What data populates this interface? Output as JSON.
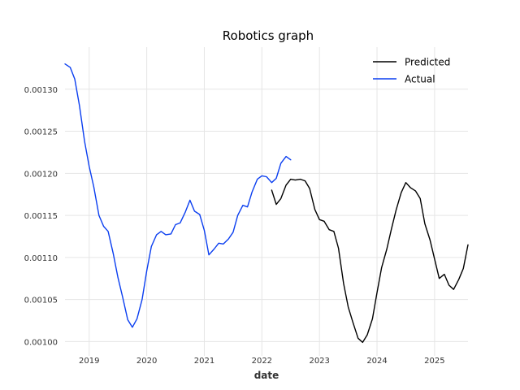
{
  "chart_data": {
    "type": "line",
    "title": "Robotics graph",
    "xlabel": "date",
    "ylabel": "",
    "xlim": [
      2018.58,
      2025.58
    ],
    "ylim": [
      0.000983,
      0.00135
    ],
    "x_ticks": [
      "2019",
      "2020",
      "2021",
      "2022",
      "2023",
      "2024",
      "2025"
    ],
    "y_ticks": [
      "0.00100",
      "0.00105",
      "0.00110",
      "0.00115",
      "0.00120",
      "0.00125",
      "0.00130"
    ],
    "grid": true,
    "legend_position": "top-right",
    "series": [
      {
        "name": "Predicted",
        "color": "#000000",
        "points": [
          [
            2022.17,
            0.00118
          ],
          [
            2022.25,
            0.001163
          ],
          [
            2022.33,
            0.00117
          ],
          [
            2022.42,
            0.001186
          ],
          [
            2022.5,
            0.001193
          ],
          [
            2022.58,
            0.001192
          ],
          [
            2022.67,
            0.001193
          ],
          [
            2022.75,
            0.001191
          ],
          [
            2022.83,
            0.001182
          ],
          [
            2022.92,
            0.001157
          ],
          [
            2023.0,
            0.001145
          ],
          [
            2023.08,
            0.001143
          ],
          [
            2023.17,
            0.001133
          ],
          [
            2023.25,
            0.001131
          ],
          [
            2023.33,
            0.001111
          ],
          [
            2023.42,
            0.001069
          ],
          [
            2023.5,
            0.001041
          ],
          [
            2023.58,
            0.001023
          ],
          [
            2023.67,
            0.001004
          ],
          [
            2023.75,
            0.000999
          ],
          [
            2023.83,
            0.001008
          ],
          [
            2023.92,
            0.001027
          ],
          [
            2024.0,
            0.001058
          ],
          [
            2024.08,
            0.001088
          ],
          [
            2024.17,
            0.00111
          ],
          [
            2024.25,
            0.001134
          ],
          [
            2024.33,
            0.001156
          ],
          [
            2024.42,
            0.001177
          ],
          [
            2024.5,
            0.001189
          ],
          [
            2024.58,
            0.001183
          ],
          [
            2024.67,
            0.001179
          ],
          [
            2024.75,
            0.00117
          ],
          [
            2024.83,
            0.00114
          ],
          [
            2024.92,
            0.001121
          ],
          [
            2025.0,
            0.001098
          ],
          [
            2025.08,
            0.001075
          ],
          [
            2025.17,
            0.00108
          ],
          [
            2025.25,
            0.001067
          ],
          [
            2025.33,
            0.001062
          ],
          [
            2025.42,
            0.001074
          ],
          [
            2025.5,
            0.001087
          ],
          [
            2025.58,
            0.001115
          ]
        ]
      },
      {
        "name": "Actual",
        "color": "#0a3ef0",
        "points": [
          [
            2018.58,
            0.00133
          ],
          [
            2018.67,
            0.001326
          ],
          [
            2018.75,
            0.001312
          ],
          [
            2018.83,
            0.001281
          ],
          [
            2018.92,
            0.001238
          ],
          [
            2019.0,
            0.001208
          ],
          [
            2019.08,
            0.001184
          ],
          [
            2019.17,
            0.00115
          ],
          [
            2019.25,
            0.001137
          ],
          [
            2019.33,
            0.001131
          ],
          [
            2019.42,
            0.001104
          ],
          [
            2019.5,
            0.001076
          ],
          [
            2019.58,
            0.001053
          ],
          [
            2019.67,
            0.001026
          ],
          [
            2019.75,
            0.001017
          ],
          [
            2019.83,
            0.001027
          ],
          [
            2019.92,
            0.00105
          ],
          [
            2020.0,
            0.001084
          ],
          [
            2020.08,
            0.001113
          ],
          [
            2020.17,
            0.001127
          ],
          [
            2020.25,
            0.001131
          ],
          [
            2020.33,
            0.001127
          ],
          [
            2020.42,
            0.001128
          ],
          [
            2020.5,
            0.001139
          ],
          [
            2020.58,
            0.001141
          ],
          [
            2020.67,
            0.001154
          ],
          [
            2020.75,
            0.001168
          ],
          [
            2020.83,
            0.001155
          ],
          [
            2020.92,
            0.001151
          ],
          [
            2021.0,
            0.001132
          ],
          [
            2021.08,
            0.001103
          ],
          [
            2021.17,
            0.00111
          ],
          [
            2021.25,
            0.001117
          ],
          [
            2021.33,
            0.001116
          ],
          [
            2021.42,
            0.001122
          ],
          [
            2021.5,
            0.00113
          ],
          [
            2021.58,
            0.00115
          ],
          [
            2021.67,
            0.001162
          ],
          [
            2021.75,
            0.00116
          ],
          [
            2021.83,
            0.001178
          ],
          [
            2021.92,
            0.001193
          ],
          [
            2022.0,
            0.001197
          ],
          [
            2022.08,
            0.001196
          ],
          [
            2022.17,
            0.001189
          ],
          [
            2022.25,
            0.001194
          ],
          [
            2022.33,
            0.001212
          ],
          [
            2022.42,
            0.00122
          ],
          [
            2022.5,
            0.001216
          ]
        ]
      }
    ]
  }
}
